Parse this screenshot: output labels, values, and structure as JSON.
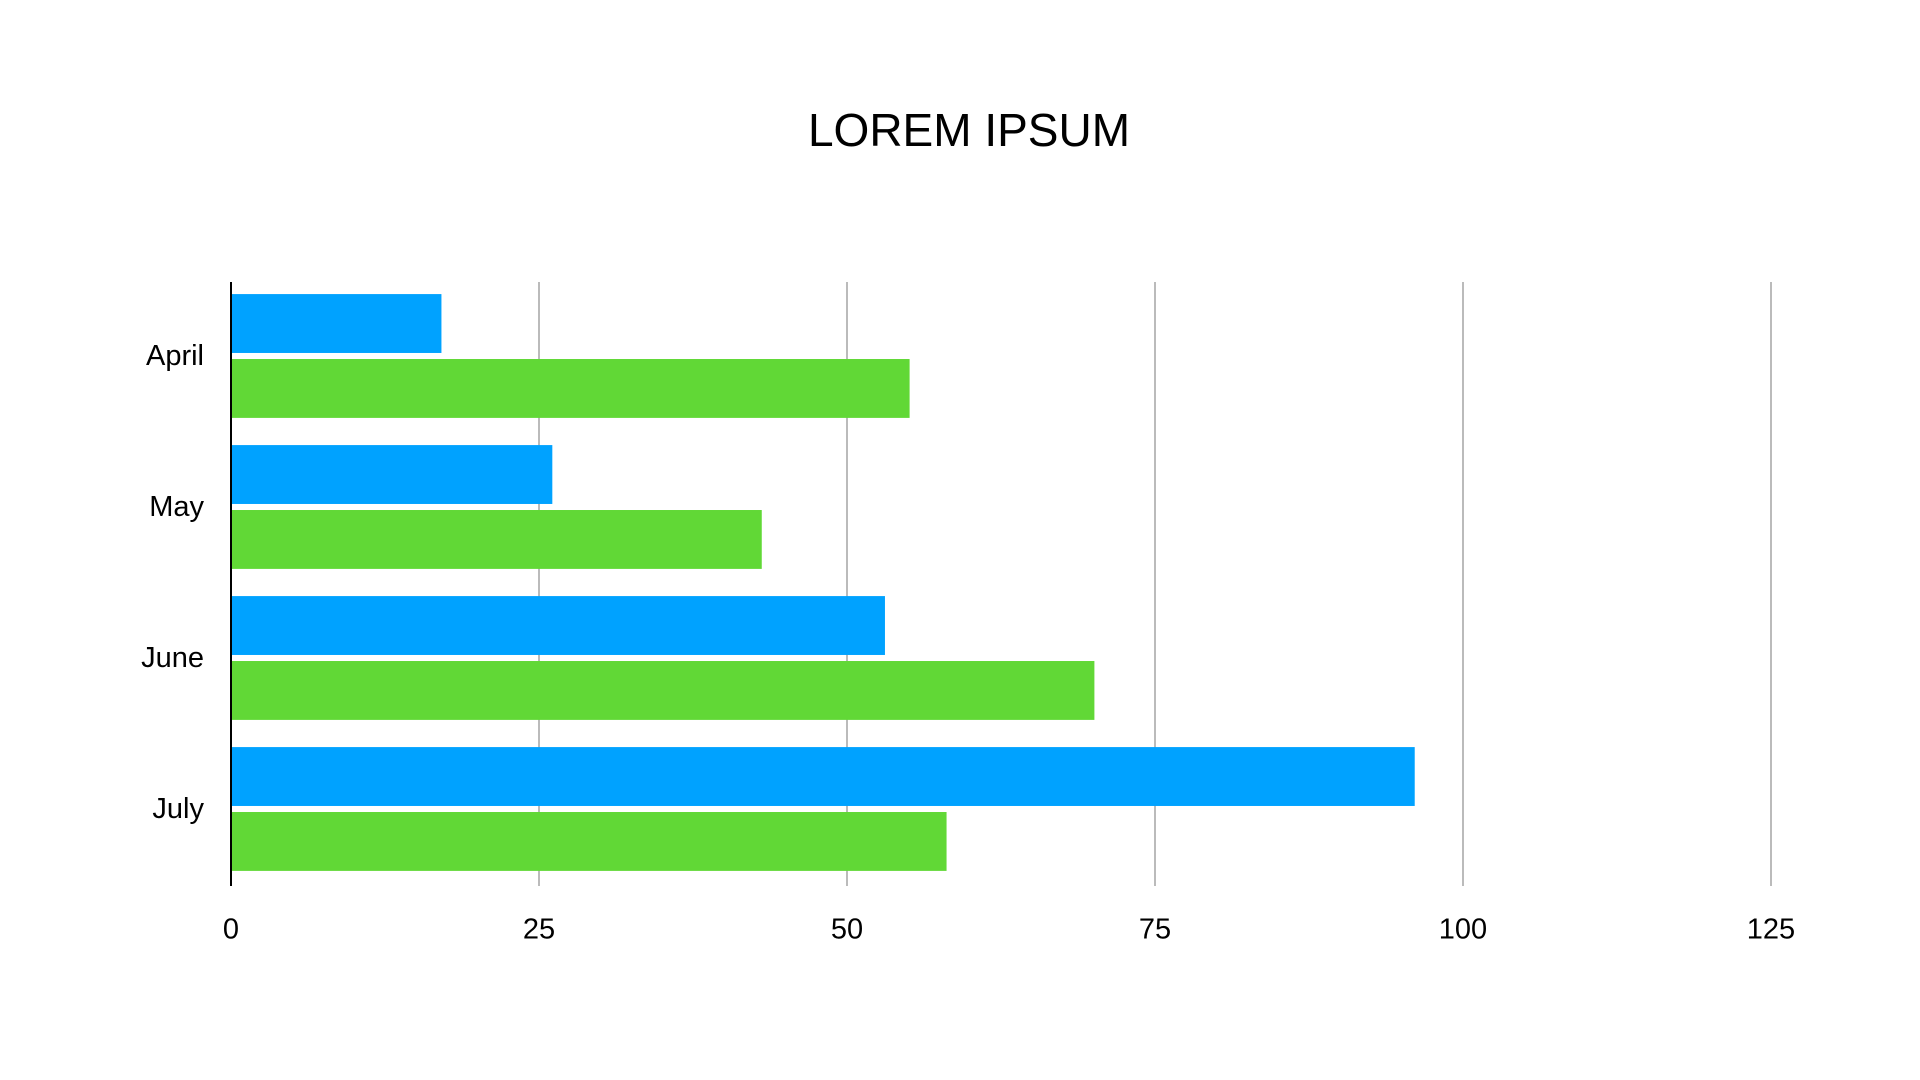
{
  "chart_data": {
    "type": "hbar",
    "title": "LOREM IPSUM",
    "categories": [
      "April",
      "May",
      "June",
      "July"
    ],
    "series": [
      {
        "color": "#00a2ff",
        "values": [
          17,
          26,
          53,
          96
        ]
      },
      {
        "color": "#61d836",
        "values": [
          55,
          43,
          70,
          58
        ]
      }
    ],
    "xlim": [
      0,
      125
    ],
    "xticks": [
      0,
      25,
      50,
      75,
      100,
      125
    ],
    "grid": true
  }
}
